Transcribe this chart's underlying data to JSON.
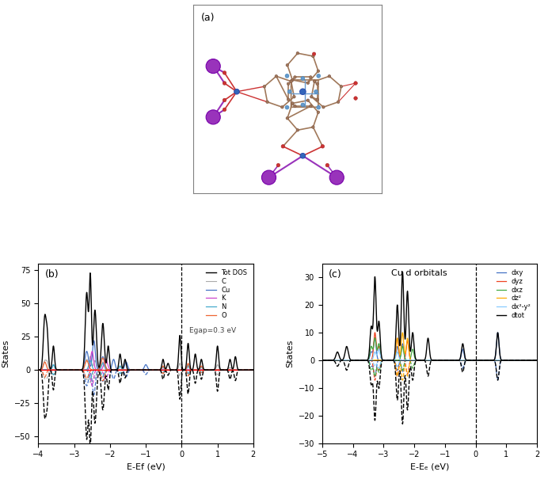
{
  "panel_b": {
    "title": "(b)",
    "xlabel": "E-Ef (eV)",
    "ylabel": "States",
    "xlim": [
      -4,
      2
    ],
    "ylim": [
      -55,
      80
    ],
    "yticks": [
      -50,
      -25,
      0,
      25,
      50,
      75
    ],
    "xticks": [
      -4,
      -3,
      -2,
      -1,
      0,
      1,
      2
    ],
    "dashed_x": 0.0,
    "annotation": "Egap=0.3 eV",
    "colors": {
      "tot": "#000000",
      "C": "#aaaaaa",
      "Cu": "#4472c4",
      "K": "#cc44cc",
      "N": "#44aacc",
      "O": "#ee6633"
    }
  },
  "panel_c": {
    "title": "(c)",
    "center_title": "Cu d orbitals",
    "xlabel": "E-Eₑ (eV)",
    "ylabel": "States",
    "xlim": [
      -5,
      2
    ],
    "ylim": [
      -30,
      35
    ],
    "yticks": [
      -30,
      -20,
      -10,
      0,
      10,
      20,
      30
    ],
    "xticks": [
      -5,
      -4,
      -3,
      -2,
      -1,
      0,
      1,
      2
    ],
    "dashed_x": 0.0,
    "colors": {
      "dxy": "#4472c4",
      "dyz": "#ee4422",
      "dxz": "#44aa44",
      "dz2": "#ffaa00",
      "dx2y2": "#88ccff",
      "dtot": "#000000"
    }
  },
  "mol": {
    "brown": "#A0785A",
    "blue_N": "#6699CC",
    "blue_Cu": "#3366BB",
    "red_O": "#CC3333",
    "purple_K": "#9933BB",
    "pink_H": "#DDBBBB",
    "purple_bond": "#9933BB",
    "red_bond": "#CC3333"
  }
}
